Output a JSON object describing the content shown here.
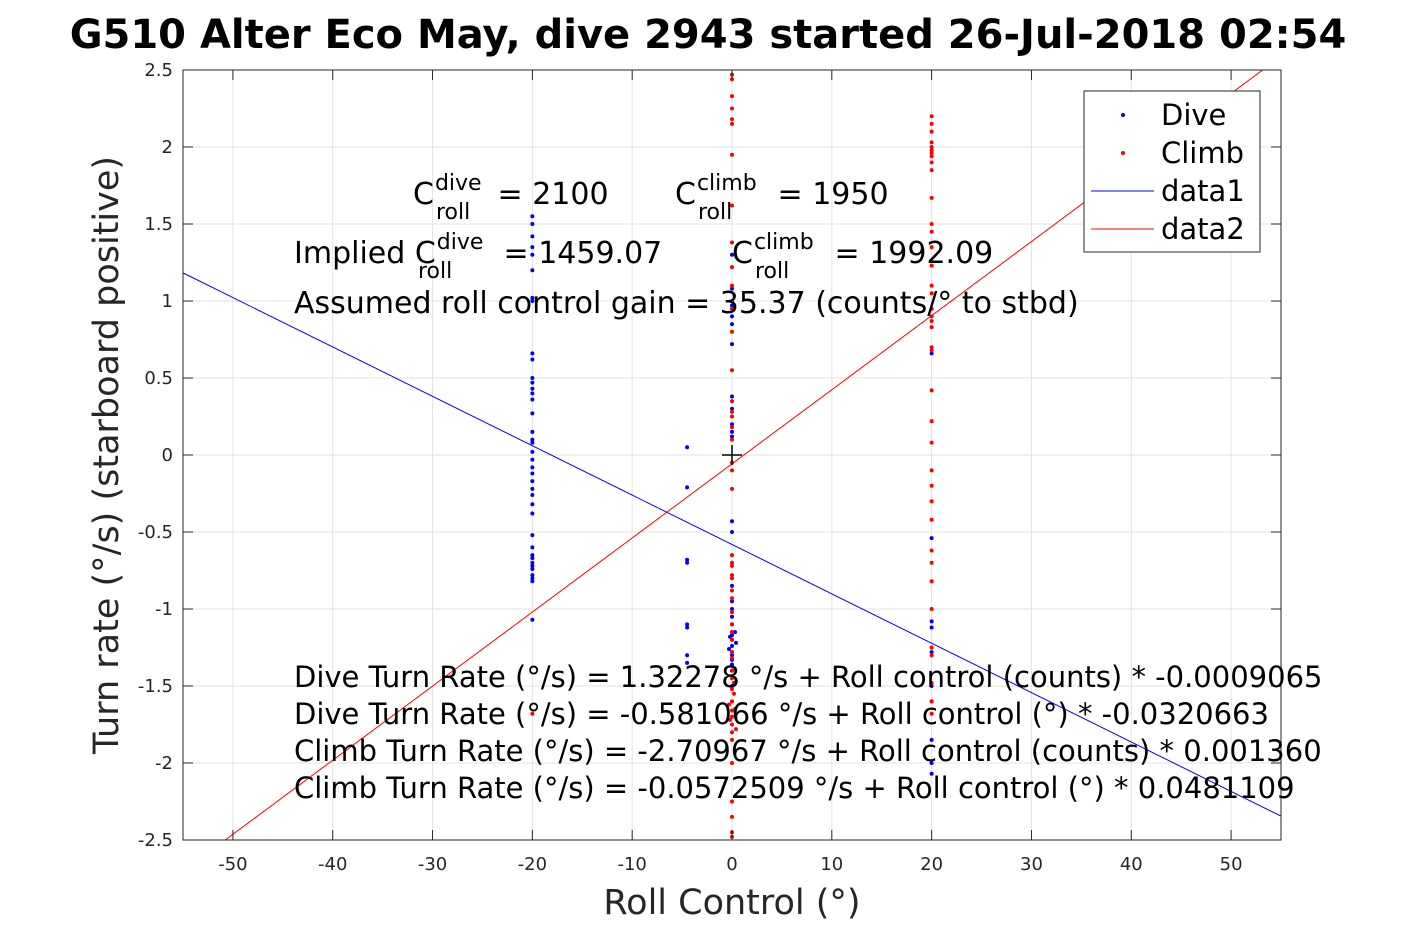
{
  "chart_data": {
    "type": "scatter",
    "title": "G510 Alter Eco May, dive 2943 started 26-Jul-2018 02:54",
    "xlabel": "Roll Control (°)",
    "ylabel": "Turn rate (°/s) (starboard positive)",
    "xlim": [
      -55,
      55
    ],
    "ylim": [
      -2.5,
      2.5
    ],
    "x_ticks": [
      -50,
      -40,
      -30,
      -20,
      -10,
      0,
      10,
      20,
      30,
      40,
      50
    ],
    "x_tick_labels": [
      "-50",
      "-40",
      "-30",
      "-20",
      "-10",
      "0",
      "10",
      "20",
      "30",
      "40",
      "50"
    ],
    "y_ticks": [
      2.5,
      2,
      1.5,
      1,
      0.5,
      0,
      -0.5,
      -1,
      -1.5,
      -2,
      -2.5
    ],
    "y_tick_labels": [
      "2.5",
      "2",
      "1.5",
      "1",
      "0.5",
      "0",
      "-0.5",
      "-1",
      "-1.5",
      "-2",
      "-2.5"
    ],
    "grid": true,
    "legend_position": "top-right",
    "colors": {
      "dive": "#0000ff",
      "climb": "#ff0000",
      "axis": "#262626",
      "grid": "#e3e3e3"
    },
    "series": [
      {
        "name": "Dive",
        "kind": "points",
        "points": [
          [
            -20,
            1.55
          ],
          [
            -20,
            1.5
          ],
          [
            -20,
            1.42
          ],
          [
            -20,
            1.35
          ],
          [
            -20,
            1.3
          ],
          [
            -20,
            1.2
          ],
          [
            -20,
            1.02
          ],
          [
            -20,
            1.0
          ],
          [
            -20,
            0.66
          ],
          [
            -20,
            0.62
          ],
          [
            -20,
            0.5
          ],
          [
            -20,
            0.47
          ],
          [
            -20,
            0.43
          ],
          [
            -20,
            0.4
          ],
          [
            -20,
            0.36
          ],
          [
            -20,
            0.27
          ],
          [
            -20,
            0.15
          ],
          [
            -20,
            0.1
          ],
          [
            -20,
            0.08
          ],
          [
            -20,
            0.02
          ],
          [
            -20,
            -0.03
          ],
          [
            -20,
            -0.08
          ],
          [
            -20,
            -0.12
          ],
          [
            -20,
            -0.17
          ],
          [
            -20,
            -0.22
          ],
          [
            -20,
            -0.26
          ],
          [
            -20,
            -0.32
          ],
          [
            -20,
            -0.38
          ],
          [
            -20,
            -0.52
          ],
          [
            -20,
            -0.6
          ],
          [
            -20,
            -0.65
          ],
          [
            -20,
            -0.67
          ],
          [
            -20,
            -0.7
          ],
          [
            -20,
            -0.72
          ],
          [
            -20,
            -0.74
          ],
          [
            -20,
            -0.78
          ],
          [
            -20,
            -0.8
          ],
          [
            -20,
            -0.82
          ],
          [
            -20,
            -1.07
          ],
          [
            -4.5,
            0.05
          ],
          [
            -4.5,
            -0.21
          ],
          [
            -4.5,
            -0.68
          ],
          [
            -4.5,
            -0.7
          ],
          [
            -4.5,
            -1.1
          ],
          [
            -4.5,
            -1.12
          ],
          [
            -4.5,
            -1.3
          ],
          [
            -4.5,
            -1.35
          ],
          [
            0,
            1.3
          ],
          [
            0,
            1.08
          ],
          [
            0,
            0.97
          ],
          [
            0,
            0.9
          ],
          [
            0,
            0.85
          ],
          [
            0,
            0.72
          ],
          [
            0,
            0.38
          ],
          [
            0,
            0.3
          ],
          [
            0,
            0.2
          ],
          [
            0,
            0.15
          ],
          [
            0,
            0.12
          ],
          [
            0,
            -0.43
          ],
          [
            0,
            -0.5
          ],
          [
            0,
            -0.85
          ],
          [
            0,
            -0.95
          ],
          [
            0,
            -1.0
          ],
          [
            0,
            -1.05
          ],
          [
            0,
            -1.1
          ],
          [
            0,
            -1.15
          ],
          [
            0,
            -1.17
          ],
          [
            0,
            -1.2
          ],
          [
            0,
            -1.24
          ],
          [
            0,
            -1.28
          ],
          [
            0,
            -1.3
          ],
          [
            0,
            -1.33
          ],
          [
            0,
            -1.36
          ],
          [
            0,
            -1.4
          ],
          [
            0,
            -1.5
          ],
          [
            0,
            -1.6
          ],
          [
            -0.2,
            -1.18
          ],
          [
            0.3,
            -1.15
          ],
          [
            0.4,
            -1.22
          ],
          [
            -0.3,
            -1.26
          ],
          [
            20,
            0.66
          ],
          [
            20,
            -0.54
          ],
          [
            20,
            -1.08
          ],
          [
            20,
            -1.12
          ],
          [
            20,
            -1.28
          ],
          [
            20,
            -1.5
          ],
          [
            20,
            -1.6
          ],
          [
            20,
            -1.85
          ],
          [
            20,
            -2.0
          ],
          [
            20,
            -2.07
          ]
        ]
      },
      {
        "name": "Climb",
        "kind": "points",
        "points": [
          [
            0,
            2.47
          ],
          [
            0,
            2.44
          ],
          [
            0,
            2.33
          ],
          [
            0,
            2.25
          ],
          [
            0,
            2.18
          ],
          [
            0,
            2.15
          ],
          [
            0,
            1.95
          ],
          [
            0,
            1.62
          ],
          [
            0,
            1.38
          ],
          [
            0,
            1.22
          ],
          [
            0,
            1.1
          ],
          [
            0,
            1.0
          ],
          [
            0,
            0.95
          ],
          [
            0,
            0.8
          ],
          [
            0,
            0.55
          ],
          [
            0,
            0.35
          ],
          [
            0,
            0.28
          ],
          [
            0,
            0.25
          ],
          [
            0,
            0.18
          ],
          [
            0,
            0.1
          ],
          [
            0,
            -0.05
          ],
          [
            0,
            -0.1
          ],
          [
            0,
            -0.22
          ],
          [
            0,
            -0.65
          ],
          [
            0,
            -0.7
          ],
          [
            0,
            -0.72
          ],
          [
            0,
            -0.78
          ],
          [
            0,
            -0.8
          ],
          [
            0,
            -0.88
          ],
          [
            0,
            -0.93
          ],
          [
            0,
            -1.02
          ],
          [
            0,
            -1.1
          ],
          [
            0,
            -1.15
          ],
          [
            0,
            -1.2
          ],
          [
            0,
            -1.28
          ],
          [
            0,
            -1.32
          ],
          [
            0,
            -1.4
          ],
          [
            0,
            -1.45
          ],
          [
            0,
            -1.52
          ],
          [
            0,
            -1.6
          ],
          [
            0,
            -1.66
          ],
          [
            0,
            -1.7
          ],
          [
            0,
            -1.75
          ],
          [
            0,
            -1.8
          ],
          [
            0,
            -1.85
          ],
          [
            0,
            -2.0
          ],
          [
            0,
            -2.25
          ],
          [
            0,
            -2.35
          ],
          [
            0,
            -2.45
          ],
          [
            0,
            -2.48
          ],
          [
            0.2,
            -1.55
          ],
          [
            0.3,
            -1.65
          ],
          [
            -0.2,
            -1.72
          ],
          [
            0.4,
            -1.78
          ],
          [
            -0.3,
            -1.62
          ],
          [
            0.2,
            -1.48
          ],
          [
            -20,
            -1.68
          ],
          [
            20,
            2.2
          ],
          [
            20,
            2.15
          ],
          [
            20,
            2.1
          ],
          [
            20,
            2.03
          ],
          [
            20,
            2.0
          ],
          [
            20,
            1.98
          ],
          [
            20,
            1.96
          ],
          [
            20,
            1.94
          ],
          [
            20,
            1.9
          ],
          [
            20,
            1.85
          ],
          [
            20,
            1.67
          ],
          [
            20,
            1.5
          ],
          [
            20,
            1.45
          ],
          [
            20,
            1.35
          ],
          [
            20,
            1.23
          ],
          [
            20,
            1.1
          ],
          [
            20,
            1.05
          ],
          [
            20,
            0.95
          ],
          [
            20,
            0.9
          ],
          [
            20,
            0.87
          ],
          [
            20,
            0.83
          ],
          [
            20,
            0.7
          ],
          [
            20,
            0.68
          ],
          [
            20,
            0.42
          ],
          [
            20,
            0.22
          ],
          [
            20,
            0.08
          ],
          [
            20,
            -0.1
          ],
          [
            20,
            -0.2
          ],
          [
            20,
            -0.3
          ],
          [
            20,
            -0.42
          ],
          [
            20,
            -0.62
          ],
          [
            20,
            -0.7
          ],
          [
            20,
            -0.82
          ],
          [
            20,
            -1.0
          ],
          [
            20,
            -1.25
          ],
          [
            20,
            -1.3
          ],
          [
            20,
            -1.48
          ],
          [
            20,
            -1.6
          ],
          [
            20,
            -1.68
          ]
        ]
      },
      {
        "name": "data1",
        "kind": "line",
        "slope": -0.0320663,
        "intercept": -0.581066
      },
      {
        "name": "data2",
        "kind": "line",
        "slope": 0.0481109,
        "intercept": -0.0572509
      }
    ],
    "center_marker": [
      0,
      0
    ],
    "annotations": {
      "c_dive": {
        "base": "C",
        "sup": "dive",
        "sub": "roll",
        "value": " = 2100"
      },
      "c_climb": {
        "base": "C",
        "sup": "climb",
        "sub": "roll",
        "value": " = 1950"
      },
      "implied_dive": {
        "prefix": "Implied ",
        "base": "C",
        "sup": "dive",
        "sub": "roll",
        "value": " = 1459.07"
      },
      "implied_climb": {
        "base": "C",
        "sup": "climb",
        "sub": "roll",
        "value": " = 1992.09"
      },
      "gain": "Assumed roll control gain = 35.37 (counts/° to stbd)",
      "eq1": "Dive Turn Rate (°/s) = 1.32278 °/s + Roll control (counts) * -0.0009065",
      "eq2": "Dive Turn Rate (°/s) = -0.581066 °/s + Roll control (°) * -0.0320663",
      "eq3": "Climb Turn Rate (°/s) = -2.70967 °/s + Roll control (counts) * 0.001360",
      "eq4": "Climb Turn Rate (°/s) = -0.0572509 °/s + Roll control (°) * 0.0481109"
    }
  }
}
